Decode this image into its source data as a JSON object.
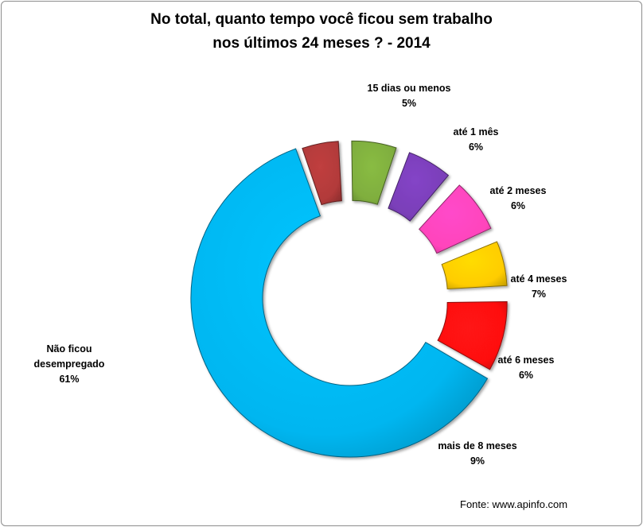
{
  "chart_data": {
    "type": "pie",
    "title_line1": "No total, quanto tempo você ficou sem trabalho",
    "title_line2": "nos últimos 24 meses ? - 2014",
    "source": "Fonte: www.apinfo.com",
    "slices": [
      {
        "label_lines": [
          "Não ficou",
          "desempregado"
        ],
        "value": 61,
        "value_label": "61%",
        "color": "#00B6F0"
      },
      {
        "label_lines": [
          "15 dias ou menos"
        ],
        "value": 5,
        "value_label": "5%",
        "color": "#B23A3A"
      },
      {
        "label_lines": [
          "até 1 mês"
        ],
        "value": 6,
        "value_label": "6%",
        "color": "#7FAE3E"
      },
      {
        "label_lines": [
          "até 2 meses"
        ],
        "value": 6,
        "value_label": "6%",
        "color": "#7A3FB8"
      },
      {
        "label_lines": [
          "até 4 meses"
        ],
        "value": 7,
        "value_label": "7%",
        "color": "#FF44BB"
      },
      {
        "label_lines": [
          "até 6 meses"
        ],
        "value": 6,
        "value_label": "6%",
        "color": "#FFCC00"
      },
      {
        "label_lines": [
          "mais de 8 meses"
        ],
        "value": 9,
        "value_label": "9%",
        "color": "#FF1111"
      }
    ]
  }
}
